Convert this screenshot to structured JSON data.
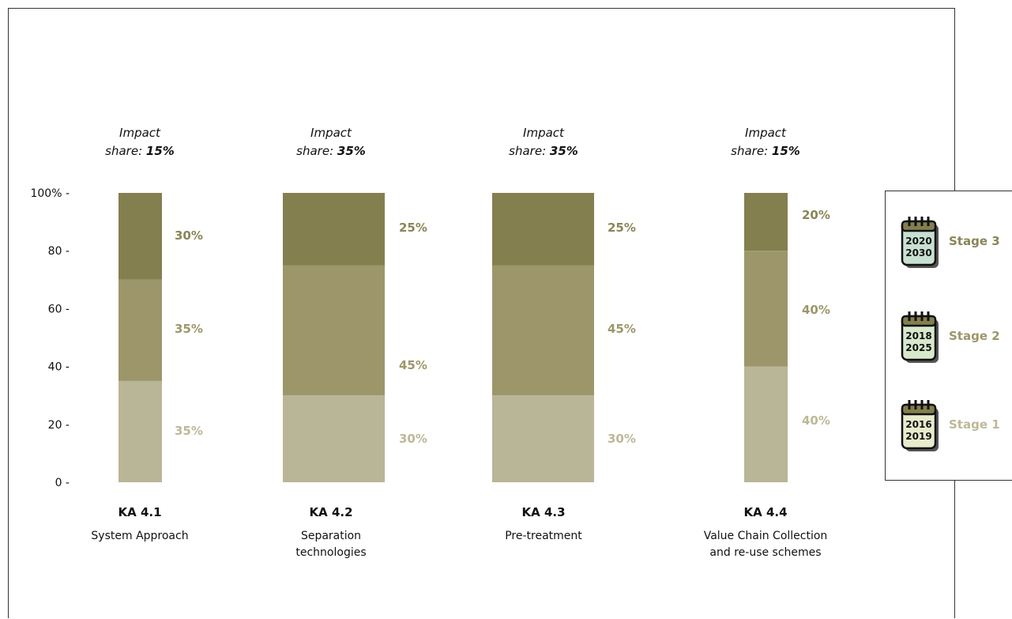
{
  "colors": {
    "stage1": "#b9b597",
    "stage2": "#9c966a",
    "stage3": "#837f4e",
    "label_stage1": "#bdb898",
    "label_stage2": "#9c966a",
    "label_stage3": "#8a8556",
    "cal_stage3_bg": "#c7e0d2",
    "cal_stage2_bg": "#d8e8cc",
    "cal_stage1_bg": "#e8ebcc"
  },
  "chart_data": {
    "type": "bar",
    "stacked": true,
    "y_ticks": [
      "0 -",
      "20 -",
      "40 -",
      "60 -",
      "80 -",
      "100% -"
    ],
    "ylim": [
      0,
      100
    ],
    "categories": [
      {
        "code": "KA 4.1",
        "name_lines": [
          "System Approach"
        ],
        "impact_prefix": "Impact",
        "impact_label": "share: ",
        "impact_value": "15%"
      },
      {
        "code": "KA 4.2",
        "name_lines": [
          "Separation",
          "technologies"
        ],
        "impact_prefix": "Impact",
        "impact_label": "share: ",
        "impact_value": "35%"
      },
      {
        "code": "KA 4.3",
        "name_lines": [
          "Pre-treatment"
        ],
        "impact_prefix": "Impact",
        "impact_label": "share: ",
        "impact_value": "35%"
      },
      {
        "code": "KA 4.4",
        "name_lines": [
          "Value Chain Collection",
          "and re-use schemes"
        ],
        "impact_prefix": "Impact",
        "impact_label": "share: ",
        "impact_value": "15%"
      }
    ],
    "series": [
      {
        "name": "Stage 1",
        "values": [
          35,
          30,
          30,
          40
        ],
        "labels": [
          "35%",
          "30%",
          "30%",
          "40%"
        ]
      },
      {
        "name": "Stage 2",
        "values": [
          35,
          45,
          45,
          40
        ],
        "labels": [
          "35%",
          "45%",
          "45%",
          "40%"
        ]
      },
      {
        "name": "Stage 3",
        "values": [
          30,
          25,
          25,
          20
        ],
        "labels": [
          "30%",
          "25%",
          "25%",
          "20%"
        ]
      }
    ]
  },
  "legend": [
    {
      "label": "Stage 3",
      "years": [
        "2020",
        "2030"
      ],
      "stage": "stage3"
    },
    {
      "label": "Stage 2",
      "years": [
        "2018",
        "2025"
      ],
      "stage": "stage2"
    },
    {
      "label": "Stage 1",
      "years": [
        "2016",
        "2019"
      ],
      "stage": "stage1"
    }
  ]
}
